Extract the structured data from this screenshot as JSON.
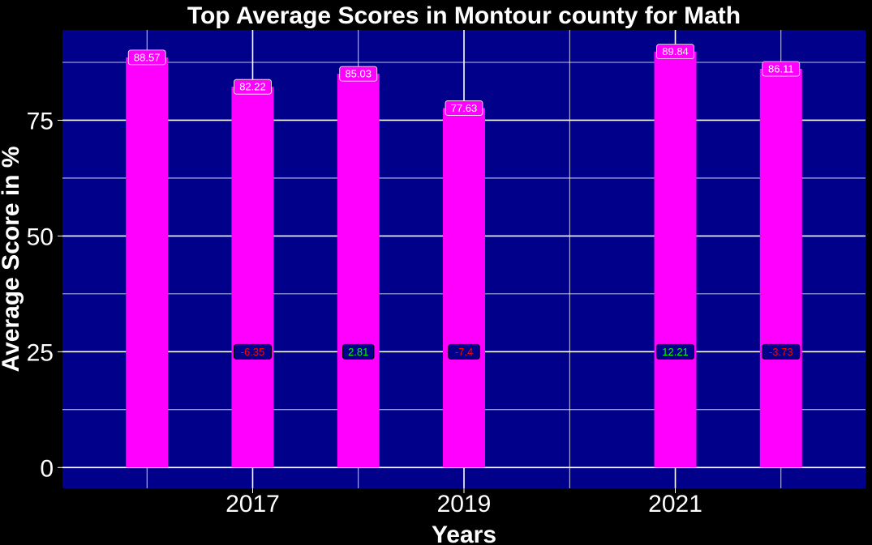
{
  "chart_data": {
    "type": "bar",
    "title": "Top Average Scores in Montour county for Math",
    "xlabel": "Years",
    "ylabel": "Average Score in %",
    "x": [
      2016,
      2017,
      2018,
      2019,
      2021,
      2022
    ],
    "values": [
      88.57,
      82.22,
      85.03,
      77.63,
      89.84,
      86.11
    ],
    "value_labels": [
      "88.57",
      "82.22",
      "85.03",
      "77.63",
      "89.84",
      "86.11"
    ],
    "changes": [
      null,
      -6.35,
      2.81,
      -7.4,
      12.21,
      -3.73
    ],
    "change_labels": [
      "",
      "-6.35",
      "2.81",
      "-7.4",
      "12.21",
      "-3.73"
    ],
    "change_label_y": 25,
    "xticks": [
      2017,
      2019,
      2021
    ],
    "xtick_labels": [
      "2017",
      "2019",
      "2021"
    ],
    "xlim": [
      2015.2,
      2022.8
    ],
    "yticks": [
      0,
      25,
      50,
      75
    ],
    "ytick_labels": [
      "0",
      "25",
      "50",
      "75"
    ],
    "ylim": [
      -4.5,
      94.5
    ],
    "grid": true,
    "colors": {
      "page_background": "#000000",
      "panel_background": "#00008b",
      "bar_fill": "#ff00ff",
      "grid": "#ffffff",
      "value_label_fill": "#ff00ff",
      "value_label_text": "#ffffff",
      "change_label_fill": "#00008b",
      "change_positive_text": "#00ff00",
      "change_negative_text": "#ff0000",
      "text": "#ffffff"
    }
  }
}
